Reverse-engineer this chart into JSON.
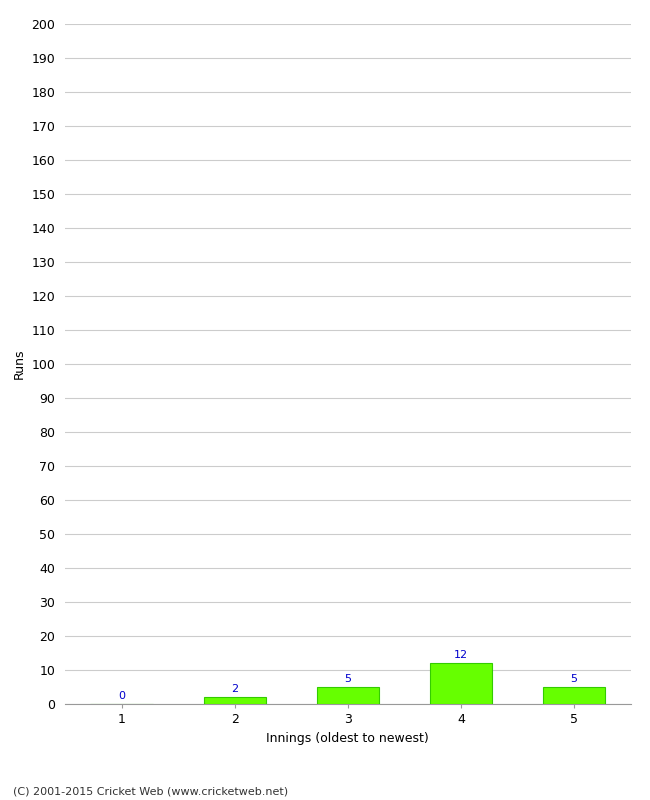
{
  "xlabel": "Innings (oldest to newest)",
  "ylabel": "Runs",
  "categories": [
    1,
    2,
    3,
    4,
    5
  ],
  "values": [
    0,
    2,
    5,
    12,
    5
  ],
  "bar_color": "#66ff00",
  "bar_edge_color": "#33cc00",
  "label_color": "#0000cc",
  "ylim": [
    0,
    200
  ],
  "yticks": [
    0,
    10,
    20,
    30,
    40,
    50,
    60,
    70,
    80,
    90,
    100,
    110,
    120,
    130,
    140,
    150,
    160,
    170,
    180,
    190,
    200
  ],
  "background_color": "#ffffff",
  "grid_color": "#cccccc",
  "footer": "(C) 2001-2015 Cricket Web (www.cricketweb.net)",
  "bar_width": 0.55,
  "label_fontsize": 9,
  "tick_fontsize": 9,
  "value_label_fontsize": 8
}
